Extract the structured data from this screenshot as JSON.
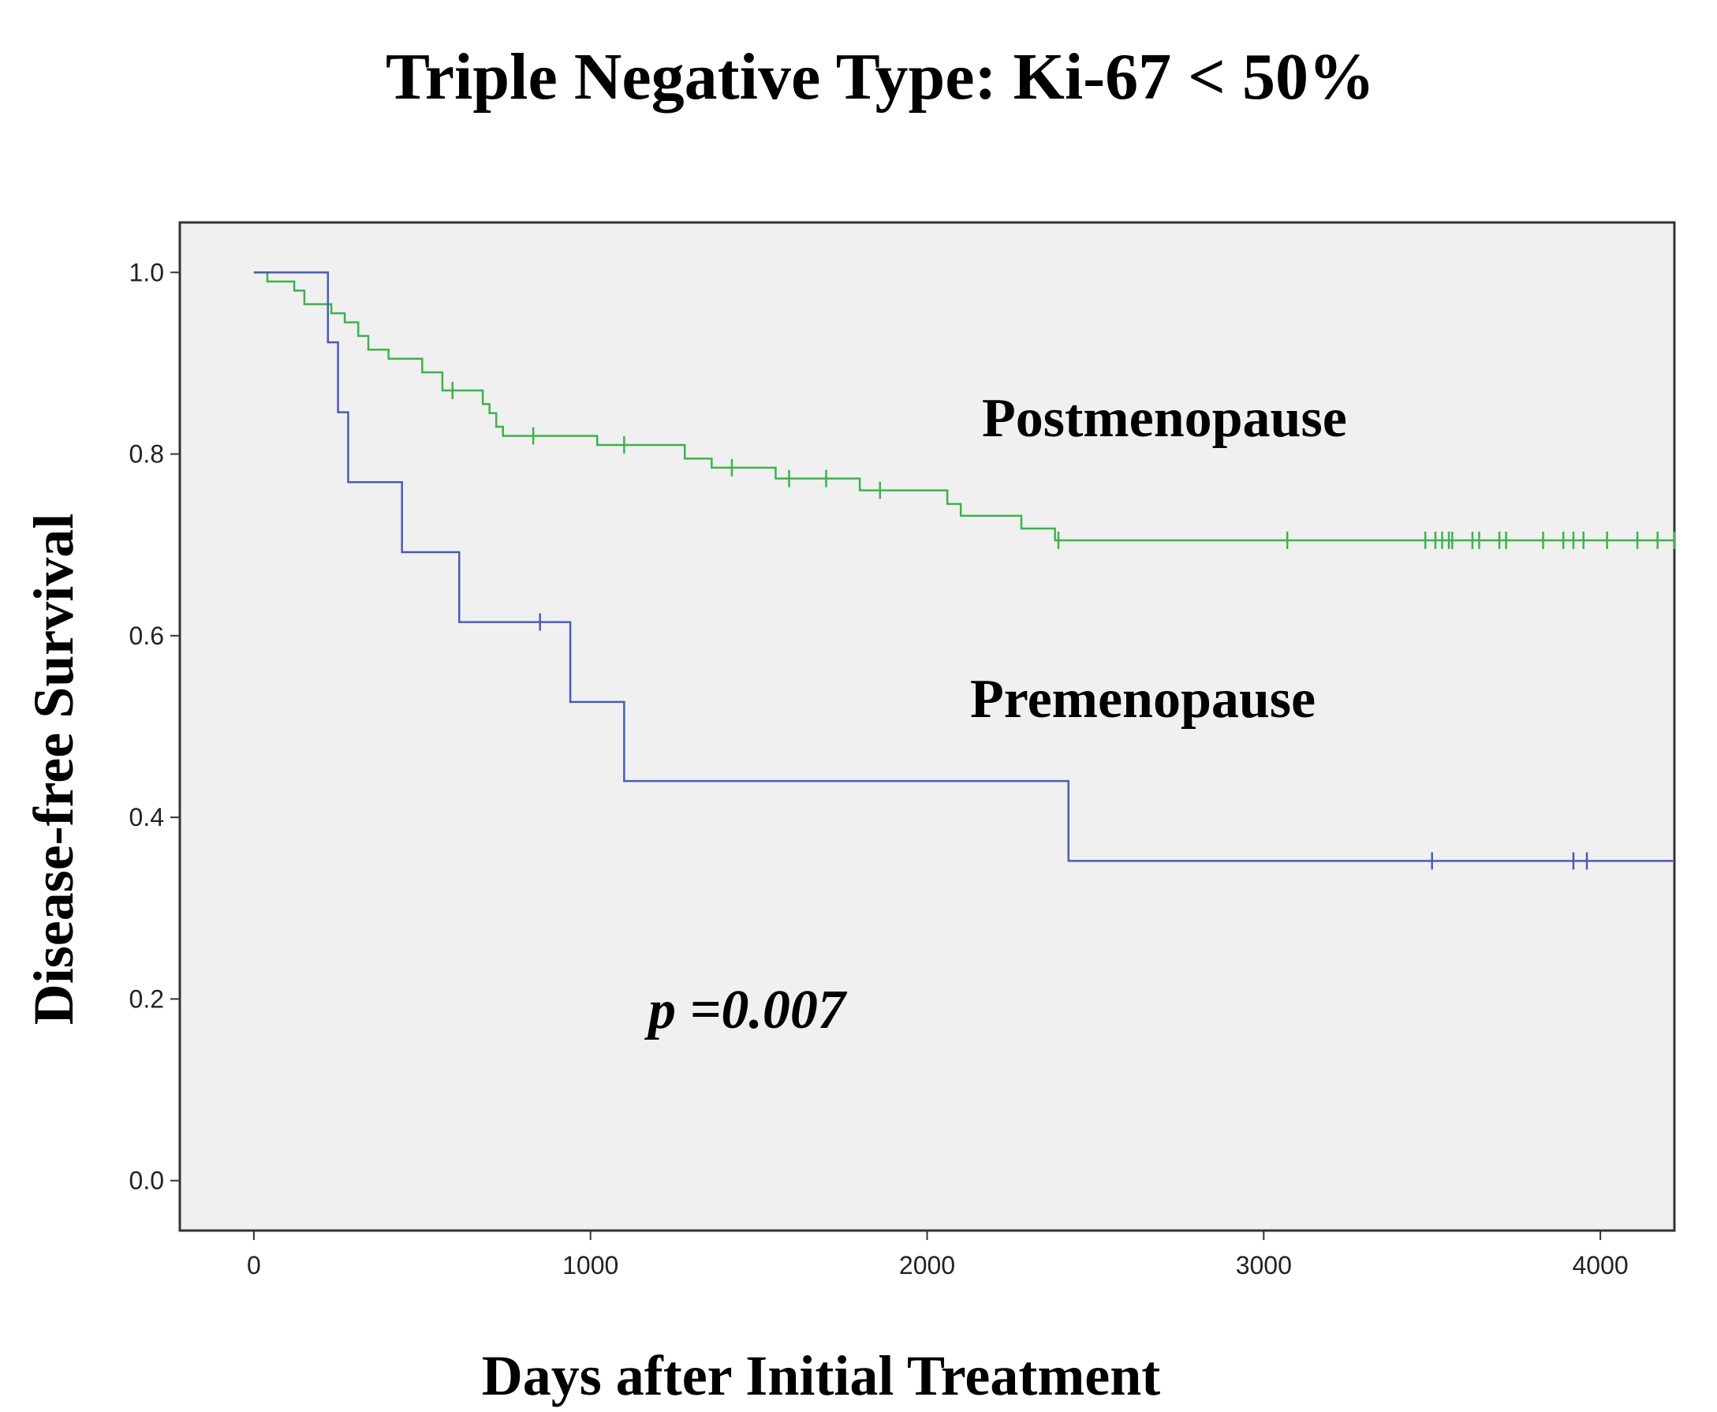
{
  "chart_data": {
    "type": "line",
    "subtype": "kaplan-meier",
    "title": "Triple Negative Type: Ki-67 < 50%",
    "xlabel": "Days after Initial Treatment",
    "ylabel": "Disease-free Survival",
    "xlim": [
      -220,
      4220
    ],
    "ylim": [
      -0.055,
      1.055
    ],
    "xticks": [
      0,
      1000,
      2000,
      3000,
      4000
    ],
    "yticks": [
      0.0,
      0.2,
      0.4,
      0.6,
      0.8,
      1.0
    ],
    "xtick_labels": [
      "0",
      "1000",
      "2000",
      "3000",
      "4000"
    ],
    "ytick_labels": [
      "0.0",
      "0.2",
      "0.4",
      "0.6",
      "0.8",
      "1.0"
    ],
    "grid": false,
    "background": "#f0f0f0",
    "annotation": "p =0.007",
    "series": [
      {
        "name": "Postmenopause",
        "color": "#3cb34a",
        "steps": [
          [
            0,
            1.0
          ],
          [
            40,
            0.99
          ],
          [
            120,
            0.98
          ],
          [
            150,
            0.965
          ],
          [
            230,
            0.955
          ],
          [
            270,
            0.945
          ],
          [
            310,
            0.93
          ],
          [
            340,
            0.915
          ],
          [
            400,
            0.905
          ],
          [
            500,
            0.89
          ],
          [
            560,
            0.87
          ],
          [
            680,
            0.855
          ],
          [
            700,
            0.845
          ],
          [
            720,
            0.83
          ],
          [
            740,
            0.82
          ],
          [
            1020,
            0.81
          ],
          [
            1280,
            0.795
          ],
          [
            1360,
            0.785
          ],
          [
            1550,
            0.773
          ],
          [
            1800,
            0.76
          ],
          [
            2060,
            0.745
          ],
          [
            2100,
            0.732
          ],
          [
            2280,
            0.718
          ],
          [
            2380,
            0.705
          ],
          [
            4220,
            0.705
          ]
        ],
        "censored": [
          [
            590,
            0.87
          ],
          [
            830,
            0.82
          ],
          [
            1100,
            0.81
          ],
          [
            1420,
            0.785
          ],
          [
            1590,
            0.773
          ],
          [
            1700,
            0.773
          ],
          [
            1860,
            0.76
          ],
          [
            2390,
            0.705
          ],
          [
            3070,
            0.705
          ],
          [
            3480,
            0.705
          ],
          [
            3510,
            0.705
          ],
          [
            3530,
            0.705
          ],
          [
            3550,
            0.705
          ],
          [
            3560,
            0.705
          ],
          [
            3620,
            0.705
          ],
          [
            3640,
            0.705
          ],
          [
            3700,
            0.705
          ],
          [
            3720,
            0.705
          ],
          [
            3830,
            0.705
          ],
          [
            3890,
            0.705
          ],
          [
            3920,
            0.705
          ],
          [
            3950,
            0.705
          ],
          [
            4020,
            0.705
          ],
          [
            4110,
            0.705
          ],
          [
            4170,
            0.705
          ],
          [
            4220,
            0.705
          ]
        ]
      },
      {
        "name": "Premenopause",
        "color": "#4a5cb5",
        "steps": [
          [
            0,
            1.0
          ],
          [
            220,
            0.923
          ],
          [
            250,
            0.846
          ],
          [
            280,
            0.769
          ],
          [
            440,
            0.692
          ],
          [
            610,
            0.615
          ],
          [
            940,
            0.527
          ],
          [
            1100,
            0.44
          ],
          [
            2420,
            0.352
          ],
          [
            4220,
            0.352
          ]
        ],
        "censored": [
          [
            850,
            0.615
          ],
          [
            3500,
            0.352
          ],
          [
            3920,
            0.352
          ],
          [
            3960,
            0.352
          ]
        ]
      }
    ]
  }
}
